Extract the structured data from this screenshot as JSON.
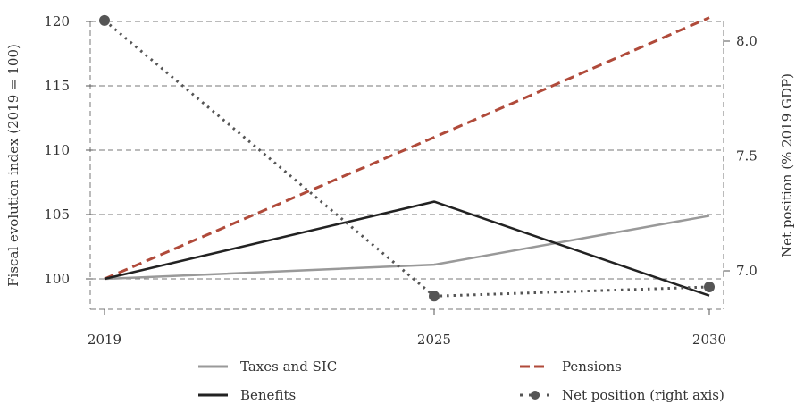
{
  "chart_data": {
    "type": "line",
    "title": "",
    "x": [
      "2019",
      "2025",
      "2030"
    ],
    "xlabel": "",
    "ylabel": "Fiscal evolution index (2019 = 100)",
    "y2label": "Net position (% 2019 GDP)",
    "ylim": [
      97.6,
      120
    ],
    "y2lim": [
      6.84,
      8.09
    ],
    "yticks": [
      "100",
      "105",
      "110",
      "115",
      "120"
    ],
    "ytick_values": [
      100,
      105,
      110,
      115,
      120
    ],
    "y2ticks": [
      "7.0",
      "7.5",
      "8.0"
    ],
    "y2tick_values": [
      7.0,
      7.5,
      8.0
    ],
    "grid": true,
    "legend_position": "bottom",
    "series": [
      {
        "name": "Taxes and SIC",
        "axis": "left",
        "values": [
          100,
          101.1,
          104.9
        ],
        "color": "#999999",
        "style": "solid"
      },
      {
        "name": "Pensions",
        "axis": "left",
        "values": [
          100,
          111.0,
          120.3
        ],
        "color": "#b04a3a",
        "style": "dashed"
      },
      {
        "name": "Benefits",
        "axis": "left",
        "values": [
          100,
          106.0,
          98.7
        ],
        "color": "#222222",
        "style": "solid"
      },
      {
        "name": "Net position (right axis)",
        "axis": "right",
        "values": [
          8.09,
          6.89,
          6.93
        ],
        "color": "#555555",
        "style": "dotted-markers"
      }
    ]
  }
}
